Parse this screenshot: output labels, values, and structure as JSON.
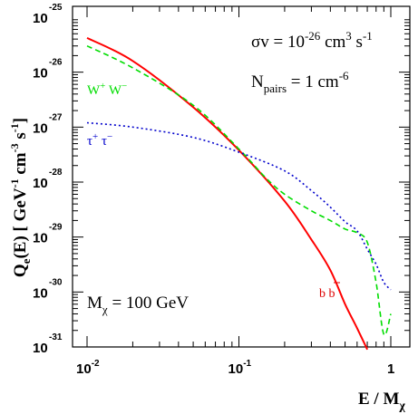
{
  "chart_data": {
    "type": "line",
    "x_scale": "log",
    "y_scale": "log",
    "xlim": [
      0.01,
      1
    ],
    "ylim": [
      1e-31,
      1e-25
    ],
    "xlabel": "E / M",
    "xlabel_sub": "χ",
    "ylabel": "Q",
    "ylabel_sub": "e",
    "ylabel_rest": "(E)  [ GeV",
    "ylabel_sup1": "-1",
    "ylabel_unit2": " cm",
    "ylabel_sup2": "-3",
    "ylabel_unit3": " s",
    "ylabel_sup3": "-1",
    "ylabel_close": "]",
    "x_ticks": [
      {
        "value": 0.01,
        "base": "10",
        "exp": "-2"
      },
      {
        "value": 0.1,
        "base": "10",
        "exp": "-1"
      },
      {
        "value": 1,
        "base": "1",
        "exp": ""
      }
    ],
    "y_ticks": [
      {
        "value": 1e-25,
        "base": "10",
        "exp": "-25"
      },
      {
        "value": 1e-26,
        "base": "10",
        "exp": "-26"
      },
      {
        "value": 1e-27,
        "base": "10",
        "exp": "-27"
      },
      {
        "value": 1e-28,
        "base": "10",
        "exp": "-28"
      },
      {
        "value": 1e-29,
        "base": "10",
        "exp": "-29"
      },
      {
        "value": 1e-30,
        "base": "10",
        "exp": "-30"
      },
      {
        "value": 1e-31,
        "base": "10",
        "exp": "-31"
      }
    ],
    "annotations": {
      "sigma_v": {
        "main": "σv = 10",
        "exp": "-26",
        "unit1": " cm",
        "exp2": "3",
        "unit2": " s",
        "exp3": "-1"
      },
      "n_pairs": {
        "main": "N",
        "sub": "pairs",
        "rest": " = 1 cm",
        "exp": "-6"
      },
      "mass": {
        "main": "M",
        "sub": "χ",
        "rest": " = 100 GeV"
      }
    },
    "series": [
      {
        "name": "b b̄",
        "label_main": "b b",
        "color": "#ff0000",
        "style": "solid",
        "x": [
          0.01,
          0.02,
          0.05,
          0.1,
          0.2,
          0.3,
          0.4,
          0.5,
          0.6,
          0.7
        ],
        "y": [
          4.2e-26,
          1.6e-26,
          2.3e-27,
          3.8e-28,
          4.5e-29,
          9e-30,
          2.5e-30,
          6e-31,
          2.2e-31,
          9e-32
        ]
      },
      {
        "name": "W⁺ W⁻",
        "label_main": "W",
        "label_sup1": "+",
        "label_mid": " W",
        "label_sup2": "−",
        "color": "#00dd00",
        "style": "dashed",
        "x": [
          0.01,
          0.02,
          0.05,
          0.1,
          0.15,
          0.2,
          0.3,
          0.4,
          0.5,
          0.6,
          0.7,
          0.8,
          0.9,
          1.0
        ],
        "y": [
          3e-26,
          1.2e-26,
          2.5e-27,
          4e-28,
          1.2e-28,
          6e-29,
          3e-29,
          2e-29,
          1.4e-29,
          1.2e-29,
          8e-30,
          1.5e-30,
          1.7e-31,
          4e-31
        ]
      },
      {
        "name": "τ⁺ τ⁻",
        "label_main": "τ",
        "label_sup1": "+",
        "label_mid": " τ",
        "label_sup2": "−",
        "color": "#0000cc",
        "style": "dotted",
        "x": [
          0.01,
          0.02,
          0.05,
          0.1,
          0.2,
          0.3,
          0.4,
          0.5,
          0.6,
          0.7,
          0.8,
          0.9,
          1.0
        ],
        "y": [
          1.2e-27,
          1e-27,
          6.5e-28,
          3.5e-28,
          1.6e-28,
          7e-29,
          3.5e-29,
          1.9e-29,
          1.3e-29,
          6e-30,
          3.2e-30,
          1.5e-30,
          1.1e-30
        ]
      }
    ]
  }
}
